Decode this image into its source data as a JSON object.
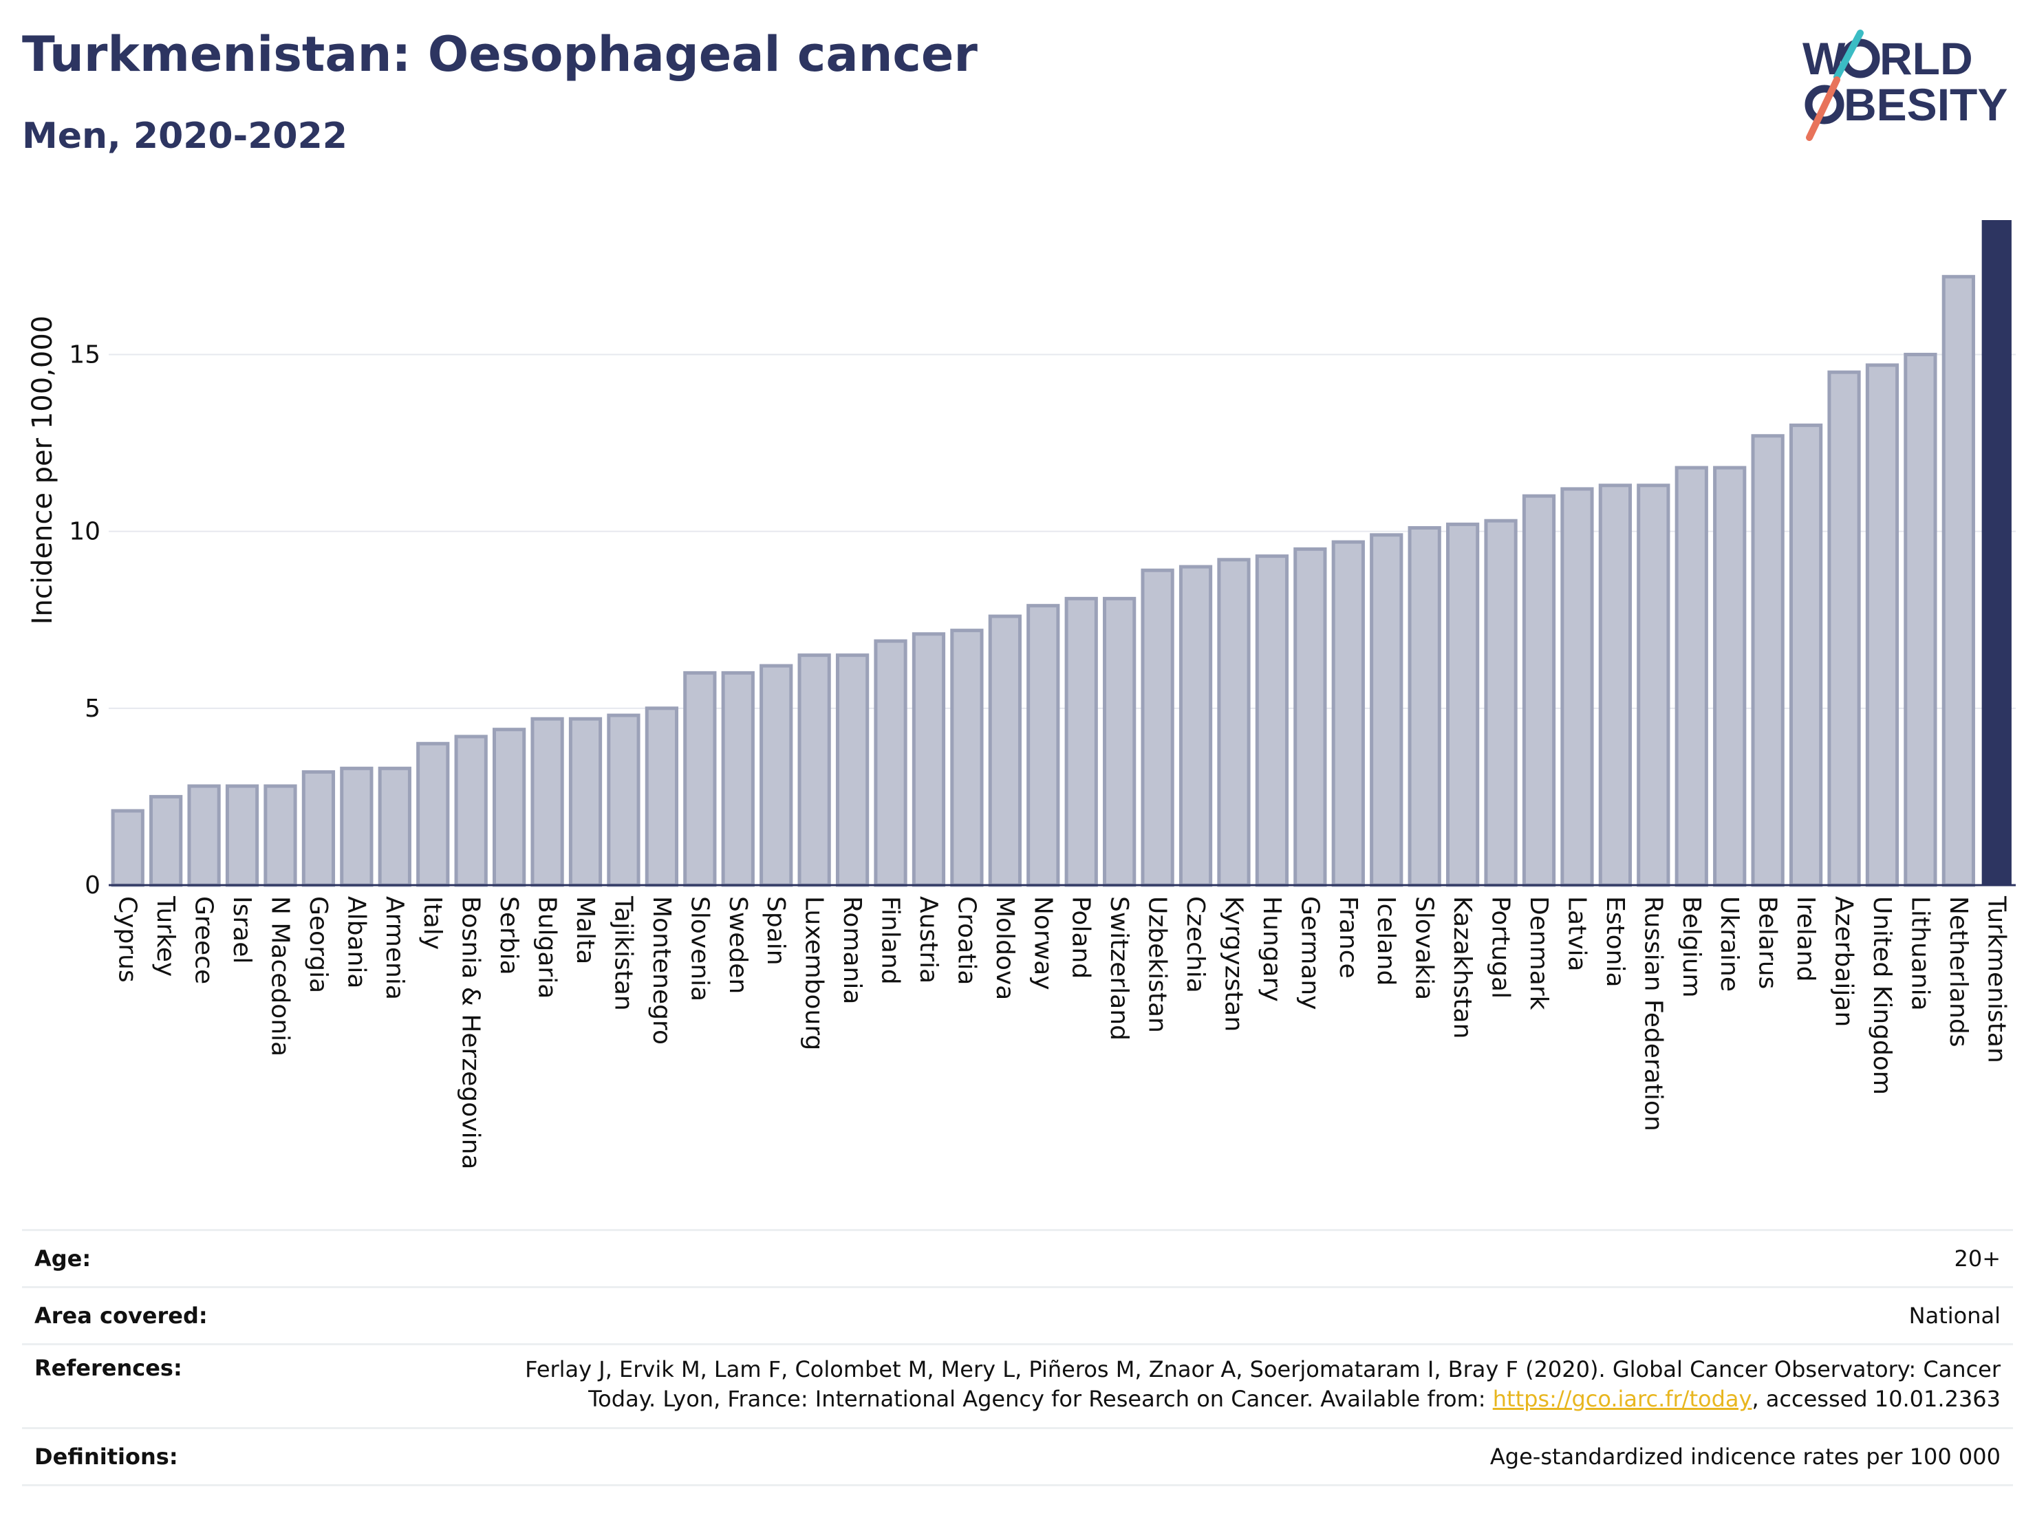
{
  "header": {
    "title": "Turkmenistan: Oesophageal cancer",
    "subtitle": "Men, 2020-2022"
  },
  "logo": {
    "line1": "WORLD",
    "line2": "OBESITY"
  },
  "chart_data": {
    "type": "bar",
    "ylabel": "Incidence per 100,000",
    "ylim": [
      0,
      18.8
    ],
    "yticks": [
      0,
      5,
      10,
      15
    ],
    "grid": true,
    "highlight": "Turkmenistan",
    "colors": {
      "bar": "#bfc3d2",
      "bar_edge": "#9ba1b8",
      "highlight": "#2d3561"
    },
    "categories": [
      "Cyprus",
      "Turkey",
      "Greece",
      "Israel",
      "N Macedonia",
      "Georgia",
      "Albania",
      "Armenia",
      "Italy",
      "Bosnia & Herzegovina",
      "Serbia",
      "Bulgaria",
      "Malta",
      "Tajikistan",
      "Montenegro",
      "Slovenia",
      "Sweden",
      "Spain",
      "Luxembourg",
      "Romania",
      "Finland",
      "Austria",
      "Croatia",
      "Moldova",
      "Norway",
      "Poland",
      "Switzerland",
      "Uzbekistan",
      "Czechia",
      "Kyrgyzstan",
      "Hungary",
      "Germany",
      "France",
      "Iceland",
      "Slovakia",
      "Kazakhstan",
      "Portugal",
      "Denmark",
      "Latvia",
      "Estonia",
      "Russian Federation",
      "Belgium",
      "Ukraine",
      "Belarus",
      "Ireland",
      "Azerbaijan",
      "United Kingdom",
      "Lithuania",
      "Netherlands",
      "Turkmenistan"
    ],
    "values": [
      2.1,
      2.5,
      2.8,
      2.8,
      2.8,
      3.2,
      3.3,
      3.3,
      4.0,
      4.2,
      4.4,
      4.7,
      4.7,
      4.8,
      5.0,
      6.0,
      6.0,
      6.2,
      6.5,
      6.5,
      6.9,
      7.1,
      7.2,
      7.6,
      7.9,
      8.1,
      8.1,
      8.9,
      9.0,
      9.2,
      9.3,
      9.5,
      9.7,
      9.9,
      10.1,
      10.2,
      10.3,
      11.0,
      11.2,
      11.3,
      11.3,
      11.8,
      11.8,
      12.7,
      13.0,
      14.5,
      14.7,
      15.0,
      17.2,
      18.8
    ]
  },
  "info": {
    "age_label": "Age:",
    "age_value": "20+",
    "area_label": "Area covered:",
    "area_value": "National",
    "references_label": "References:",
    "references_line1": "Ferlay J, Ervik M, Lam F, Colombet M, Mery L, Piñeros M, Znaor A, Soerjomataram I, Bray F (2020). Global Cancer Observatory: Cancer",
    "references_line2_pre": "Today. Lyon, France: International Agency for Research on Cancer. Available from: ",
    "references_link": "https://gco.iarc.fr/today",
    "references_line2_post": ", accessed 10.01.2363",
    "definitions_label": "Definitions:",
    "definitions_value": "Age-standardized indicence rates per 100 000"
  }
}
